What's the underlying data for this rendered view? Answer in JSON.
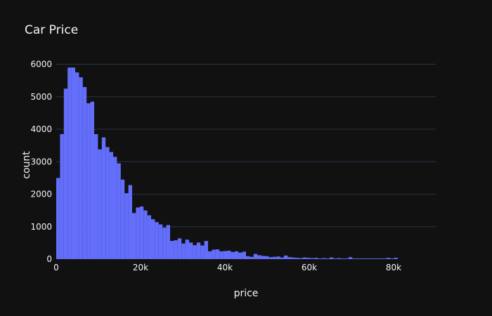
{
  "chart_data": {
    "type": "bar",
    "title": "Car Price",
    "xlabel": "price",
    "ylabel": "count",
    "bin_width": 900,
    "bin_start": 0,
    "xlim": [
      0,
      90000
    ],
    "ylim": [
      0,
      6250
    ],
    "x_ticks": [
      {
        "value": 0,
        "label": "0"
      },
      {
        "value": 20000,
        "label": "20k"
      },
      {
        "value": 40000,
        "label": "40k"
      },
      {
        "value": 60000,
        "label": "60k"
      },
      {
        "value": 80000,
        "label": "80k"
      }
    ],
    "y_ticks": [
      {
        "value": 0,
        "label": "0"
      },
      {
        "value": 1000,
        "label": "1000"
      },
      {
        "value": 2000,
        "label": "2000"
      },
      {
        "value": 3000,
        "label": "3000"
      },
      {
        "value": 4000,
        "label": "4000"
      },
      {
        "value": 5000,
        "label": "5000"
      },
      {
        "value": 6000,
        "label": "6000"
      }
    ],
    "grid": true,
    "bar_color": "#636efa",
    "values": [
      2500,
      3850,
      5250,
      5900,
      5900,
      5750,
      5600,
      5300,
      4800,
      4850,
      3850,
      3380,
      3750,
      3450,
      3300,
      3150,
      2950,
      2450,
      2030,
      2280,
      1420,
      1590,
      1620,
      1500,
      1350,
      1230,
      1140,
      1070,
      970,
      1050,
      560,
      580,
      640,
      480,
      600,
      510,
      430,
      510,
      420,
      560,
      240,
      290,
      300,
      240,
      250,
      260,
      220,
      240,
      200,
      230,
      90,
      70,
      160,
      120,
      100,
      90,
      60,
      70,
      80,
      50,
      110,
      60,
      50,
      40,
      30,
      50,
      40,
      30,
      40,
      20,
      30,
      20,
      50,
      20,
      30,
      20,
      20,
      60,
      20,
      20,
      20,
      20,
      20,
      20,
      20,
      20,
      20,
      40,
      20,
      40
    ]
  },
  "colors": {
    "background": "#111111",
    "grid": "#283442",
    "text": "#f2f5fa"
  }
}
